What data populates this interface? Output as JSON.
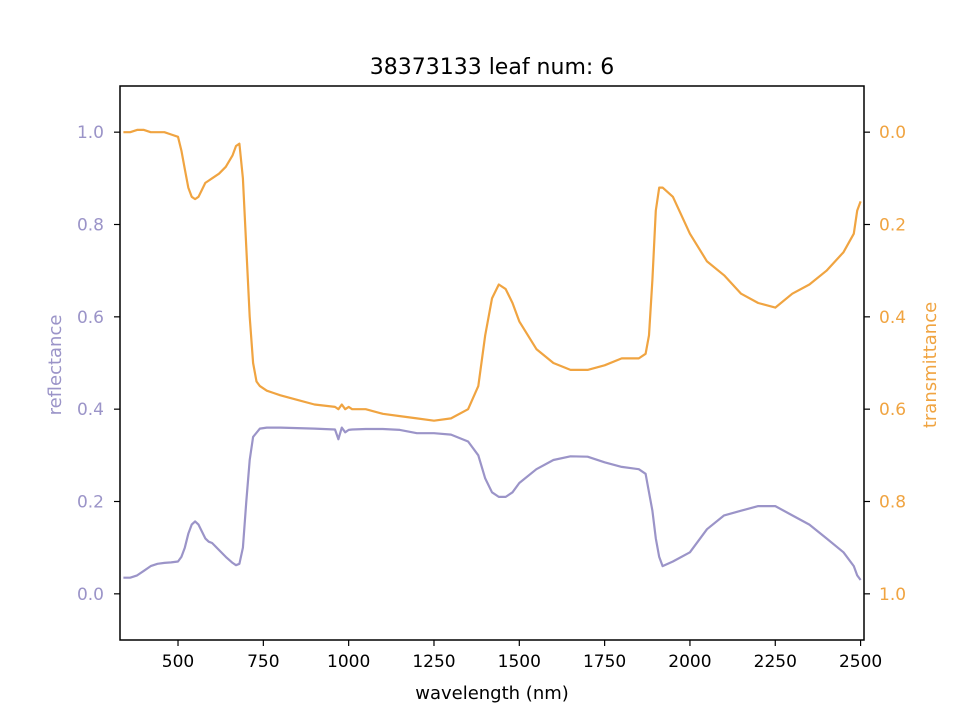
{
  "chart_data": {
    "type": "line",
    "title": "38373133 leaf num: 6",
    "xlabel": "wavelength (nm)",
    "ylabel_left": "reflectance",
    "ylabel_right": "transmittance",
    "xlim": [
      330,
      2510
    ],
    "ylim_left": [
      -0.1,
      1.1
    ],
    "ylim_right": [
      1.1,
      -0.1
    ],
    "right_axis_inverted": true,
    "grid": false,
    "x_ticks": [
      500,
      750,
      1000,
      1250,
      1500,
      1750,
      2000,
      2250,
      2500
    ],
    "y_ticks_left": [
      0.0,
      0.2,
      0.4,
      0.6,
      0.8,
      1.0
    ],
    "y_ticks_right": [
      0.0,
      0.2,
      0.4,
      0.6,
      0.8,
      1.0
    ],
    "series": [
      {
        "axis": "left",
        "color": "#9b94c8",
        "x": [
          340,
          360,
          380,
          400,
          420,
          440,
          460,
          480,
          500,
          510,
          520,
          530,
          540,
          550,
          560,
          570,
          580,
          590,
          600,
          620,
          640,
          660,
          670,
          680,
          690,
          700,
          710,
          720,
          740,
          760,
          780,
          800,
          900,
          960,
          970,
          980,
          990,
          1000,
          1010,
          1050,
          1100,
          1150,
          1200,
          1250,
          1300,
          1350,
          1380,
          1400,
          1420,
          1440,
          1460,
          1480,
          1500,
          1550,
          1600,
          1650,
          1700,
          1750,
          1800,
          1850,
          1870,
          1880,
          1890,
          1900,
          1910,
          1920,
          1950,
          2000,
          2050,
          2100,
          2150,
          2200,
          2250,
          2300,
          2350,
          2400,
          2450,
          2480,
          2490,
          2500
        ],
        "values": [
          0.035,
          0.035,
          0.04,
          0.05,
          0.06,
          0.065,
          0.067,
          0.068,
          0.07,
          0.08,
          0.1,
          0.13,
          0.15,
          0.157,
          0.15,
          0.135,
          0.12,
          0.113,
          0.11,
          0.095,
          0.08,
          0.067,
          0.062,
          0.065,
          0.1,
          0.2,
          0.29,
          0.34,
          0.358,
          0.36,
          0.36,
          0.36,
          0.358,
          0.356,
          0.335,
          0.36,
          0.35,
          0.355,
          0.356,
          0.357,
          0.357,
          0.355,
          0.348,
          0.348,
          0.345,
          0.33,
          0.3,
          0.25,
          0.22,
          0.21,
          0.21,
          0.22,
          0.24,
          0.27,
          0.29,
          0.298,
          0.297,
          0.285,
          0.275,
          0.27,
          0.26,
          0.22,
          0.18,
          0.12,
          0.08,
          0.06,
          0.07,
          0.09,
          0.14,
          0.17,
          0.18,
          0.19,
          0.19,
          0.17,
          0.15,
          0.12,
          0.09,
          0.06,
          0.04,
          0.03
        ]
      },
      {
        "axis": "right",
        "color": "#f0a441",
        "x": [
          340,
          360,
          380,
          400,
          420,
          440,
          460,
          480,
          500,
          510,
          520,
          530,
          540,
          550,
          560,
          570,
          580,
          590,
          600,
          620,
          640,
          660,
          670,
          680,
          690,
          700,
          710,
          720,
          730,
          740,
          760,
          780,
          800,
          850,
          900,
          960,
          970,
          980,
          990,
          1000,
          1010,
          1050,
          1100,
          1150,
          1200,
          1250,
          1300,
          1350,
          1380,
          1400,
          1420,
          1440,
          1460,
          1480,
          1500,
          1550,
          1600,
          1650,
          1700,
          1750,
          1800,
          1850,
          1870,
          1880,
          1890,
          1900,
          1910,
          1920,
          1950,
          2000,
          2050,
          2100,
          2150,
          2200,
          2250,
          2300,
          2350,
          2400,
          2450,
          2480,
          2490,
          2500
        ],
        "values": [
          0.0,
          0.0,
          -0.005,
          -0.005,
          0.0,
          0.0,
          0.0,
          0.005,
          0.01,
          0.04,
          0.08,
          0.12,
          0.14,
          0.145,
          0.14,
          0.125,
          0.11,
          0.105,
          0.1,
          0.09,
          0.075,
          0.05,
          0.03,
          0.025,
          0.1,
          0.25,
          0.4,
          0.5,
          0.54,
          0.55,
          0.56,
          0.565,
          0.57,
          0.58,
          0.59,
          0.595,
          0.6,
          0.59,
          0.6,
          0.595,
          0.6,
          0.6,
          0.61,
          0.615,
          0.62,
          0.625,
          0.62,
          0.6,
          0.55,
          0.44,
          0.36,
          0.33,
          0.34,
          0.37,
          0.41,
          0.47,
          0.5,
          0.515,
          0.515,
          0.505,
          0.49,
          0.49,
          0.48,
          0.44,
          0.32,
          0.17,
          0.12,
          0.12,
          0.14,
          0.22,
          0.28,
          0.31,
          0.35,
          0.37,
          0.38,
          0.35,
          0.33,
          0.3,
          0.26,
          0.22,
          0.17,
          0.15
        ]
      }
    ]
  },
  "colors": {
    "reflectance": "#9b94c8",
    "transmittance": "#f0a441",
    "axes": "#000000"
  }
}
